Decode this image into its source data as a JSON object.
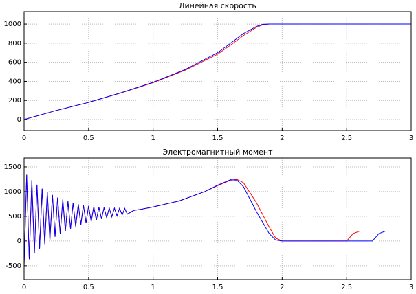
{
  "chart_data": [
    {
      "type": "line",
      "title": "Линейная скорость",
      "x": [
        0,
        0.25,
        0.5,
        0.75,
        1,
        1.25,
        1.5,
        1.6,
        1.7,
        1.8,
        1.85,
        1.9,
        2.5,
        3
      ],
      "series": [
        {
          "color": "#ff0000",
          "values": [
            0,
            95,
            180,
            278,
            386,
            518,
            685,
            780,
            880,
            965,
            992,
            1000,
            1000,
            1000
          ]
        },
        {
          "color": "#0000ff",
          "values": [
            0,
            95,
            180,
            280,
            390,
            525,
            700,
            800,
            900,
            975,
            998,
            1000,
            1000,
            1000
          ]
        }
      ],
      "xlim": [
        0,
        3
      ],
      "xticks": [
        0,
        0.5,
        1,
        1.5,
        2,
        2.5,
        3
      ],
      "ylim": [
        -115,
        1130
      ],
      "yticks": [
        0,
        200,
        400,
        600,
        800,
        1000
      ],
      "grid": true
    },
    {
      "type": "line",
      "title": "Электромагнитный момент",
      "x": [
        0,
        0.02,
        0.04,
        0.06,
        0.08,
        0.1,
        0.12,
        0.14,
        0.16,
        0.18,
        0.2,
        0.22,
        0.24,
        0.26,
        0.28,
        0.3,
        0.32,
        0.34,
        0.36,
        0.38,
        0.4,
        0.42,
        0.44,
        0.46,
        0.48,
        0.5,
        0.52,
        0.54,
        0.56,
        0.58,
        0.6,
        0.62,
        0.64,
        0.66,
        0.68,
        0.7,
        0.72,
        0.74,
        0.76,
        0.78,
        0.8,
        0.85,
        0.9,
        1,
        1.2,
        1.4,
        1.5,
        1.6,
        1.65,
        1.7,
        1.8,
        1.9,
        1.95,
        2,
        2.5,
        2.55,
        2.6,
        2.7,
        2.75,
        2.8,
        3
      ],
      "series": [
        {
          "color": "#ff0000",
          "values": [
            -500,
            1340,
            -368,
            1232,
            -253,
            1139,
            -152,
            1059,
            -63,
            990,
            16,
            932,
            86,
            881,
            146,
            840,
            201,
            804,
            248,
            773,
            292,
            748,
            330,
            727,
            364,
            710,
            395,
            696,
            422,
            685,
            448,
            676,
            471,
            669,
            491,
            665,
            511,
            662,
            528,
            660,
            544,
            620,
            640,
            690,
            810,
            1000,
            1120,
            1230,
            1245,
            1180,
            780,
            280,
            60,
            0,
            0,
            150,
            200,
            200,
            200,
            200,
            200
          ]
        },
        {
          "color": "#0000ff",
          "values": [
            -500,
            1340,
            -368,
            1232,
            -253,
            1139,
            -152,
            1059,
            -63,
            990,
            16,
            932,
            86,
            881,
            146,
            840,
            201,
            804,
            248,
            773,
            292,
            748,
            330,
            727,
            364,
            710,
            395,
            696,
            422,
            685,
            448,
            676,
            471,
            669,
            491,
            665,
            511,
            662,
            528,
            660,
            544,
            620,
            640,
            690,
            810,
            1000,
            1130,
            1240,
            1230,
            1100,
            600,
            150,
            20,
            0,
            0,
            0,
            0,
            0,
            150,
            200,
            200
          ]
        }
      ],
      "xlim": [
        0,
        3
      ],
      "xticks": [
        0,
        0.5,
        1,
        1.5,
        2,
        2.5,
        3
      ],
      "ylim": [
        -780,
        1680
      ],
      "yticks": [
        -500,
        0,
        500,
        1000,
        1500
      ],
      "grid": true
    }
  ]
}
